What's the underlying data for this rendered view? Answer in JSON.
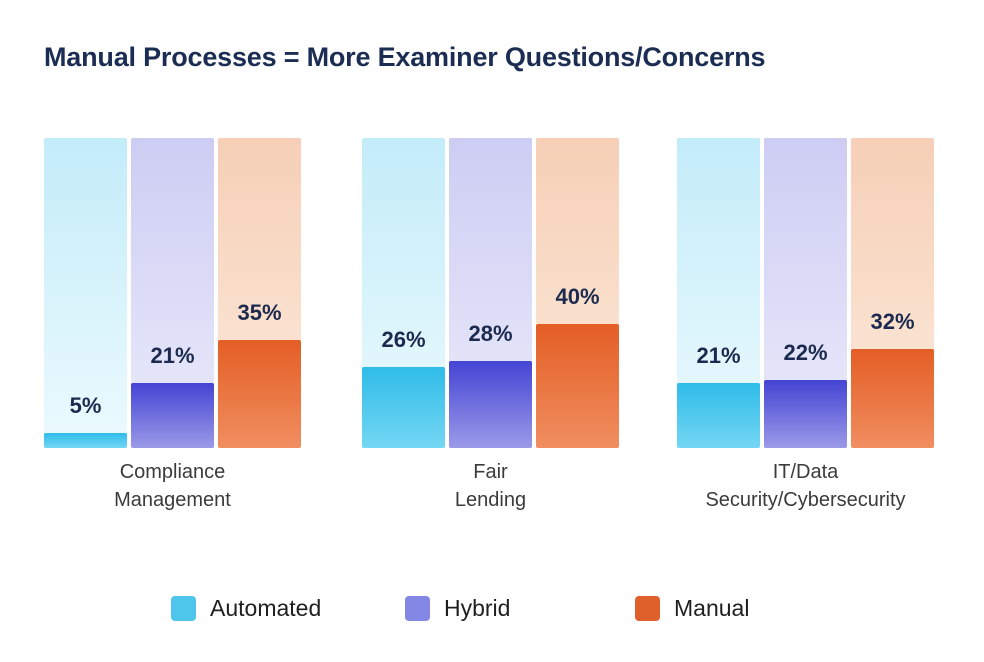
{
  "header": {
    "title": "Manual Processes = More Examiner Questions/Concerns"
  },
  "chart_data": {
    "type": "bar",
    "title": "Manual Processes = More Examiner Questions/Concerns",
    "categories": [
      "Compliance\nManagement",
      "Fair\nLending",
      "IT/Data\nSecurity/Cybersecurity"
    ],
    "series": [
      {
        "name": "Automated",
        "values": [
          5,
          26,
          21
        ]
      },
      {
        "name": "Hybrid",
        "values": [
          21,
          28,
          22
        ]
      },
      {
        "name": "Manual",
        "values": [
          35,
          40,
          32
        ]
      }
    ],
    "value_suffix": "%",
    "ylim": [
      0,
      100
    ],
    "grid": false,
    "axis_labels": false,
    "legend_position": "bottom",
    "bar_style": "full-height light track with solid fill from bottom"
  },
  "legend": {
    "items": [
      {
        "label": "Automated",
        "color": "#4ec6ec"
      },
      {
        "label": "Hybrid",
        "color": "#8487e4"
      },
      {
        "label": "Manual",
        "color": "#e0602b"
      }
    ]
  },
  "styles": {
    "title_color": "#1b2d52",
    "value_label_color": "#1b2a4e",
    "category_label_color": "#3b3b3b",
    "series_colors": {
      "Automated": {
        "fill_top": "#2fbce9",
        "fill_bottom": "#74d6f3",
        "track_top": "#c3ecf9",
        "track_bottom": "#ecfafe"
      },
      "Hybrid": {
        "fill_top": "#4444d4",
        "fill_bottom": "#9b9ae8",
        "track_top": "#cdcdf4",
        "track_bottom": "#ebebfb"
      },
      "Manual": {
        "fill_top": "#e45e25",
        "fill_bottom": "#f08e60",
        "track_top": "#f6cfb6",
        "track_bottom": "#fcebdd"
      }
    }
  }
}
